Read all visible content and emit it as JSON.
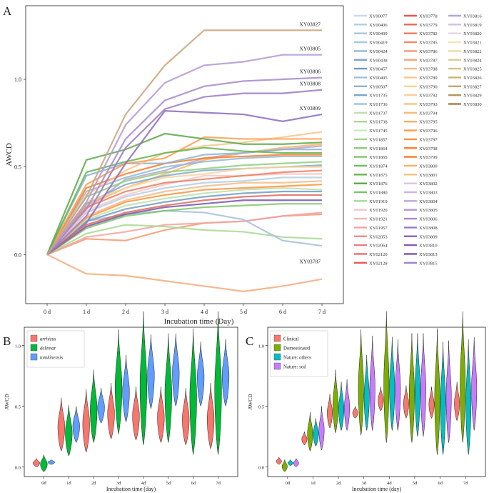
{
  "chart_data": [
    {
      "panel": "A",
      "type": "line",
      "xlabel": "Incubation time (Day)",
      "ylabel": "AWCD",
      "categories": [
        "0 d",
        "1 d",
        "2 d",
        "3 d",
        "4 d",
        "5 d",
        "6 d",
        "7 d"
      ],
      "ylim": [
        -0.28,
        1.42
      ],
      "yticks": [
        "0.0",
        "0.5",
        "1.0"
      ],
      "ytick_values": [
        0.0,
        0.5,
        1.0
      ],
      "annotations": [
        "XY03827",
        "XY03805",
        "XY03806",
        "XY03808",
        "XY03809",
        "XY03787"
      ],
      "legend_names": [
        "XY00077",
        "XY00406",
        "XY00409",
        "XY00419",
        "XY00424",
        "XY00438",
        "XY00457",
        "XY00495",
        "XY00507",
        "XY01735",
        "XY01736",
        "XY01737",
        "XY01738",
        "XY01745",
        "XY01857",
        "XY01864",
        "XY01865",
        "XY01874",
        "XY01875",
        "XY01876",
        "XY01880",
        "XY01919",
        "XY01920",
        "XY01921",
        "XY01957",
        "XY02053",
        "XY02064",
        "XY02120",
        "XY02128",
        "XY03778",
        "XY03779",
        "XY03782",
        "XY03785",
        "XY03786",
        "XY03787",
        "XY03788",
        "XY03789",
        "XY03790",
        "XY03792",
        "XY03793",
        "XY03794",
        "XY03795",
        "XY03796",
        "XY03797",
        "XY03798",
        "XY03799",
        "XY03800",
        "XY03801",
        "XY03802",
        "XY03803",
        "XY03804",
        "XY03805",
        "XY03806",
        "XY03808",
        "XY03809",
        "XY03810",
        "XY03813",
        "XY03815",
        "XY03816",
        "XY03819",
        "XY03820",
        "XY03821",
        "XY03822",
        "XY03824",
        "XY03825",
        "XY03826",
        "XY03827",
        "XY03829",
        "XY03830"
      ],
      "legend_colors": [
        "#c6dbef",
        "#b3cde3",
        "#a6c4df",
        "#9ecae1",
        "#8fb9d8",
        "#7fa8cc",
        "#6e9bc4",
        "#a3bfd9",
        "#8bb3d6",
        "#7aa6cf",
        "#9ec7e6",
        "#b8e0a8",
        "#a8d98f",
        "#c7e9c0",
        "#9fd68a",
        "#8fce7a",
        "#7fc66a",
        "#6fbe5a",
        "#63b34e",
        "#5aa845",
        "#7cc26c",
        "#a1d99b",
        "#f7c6c6",
        "#f4b4b4",
        "#f2a2a2",
        "#ef9090",
        "#ec7e7e",
        "#e96c6c",
        "#e65a5a",
        "#e35a4f",
        "#e16b55",
        "#ee7a5e",
        "#f08a68",
        "#f29a72",
        "#f4aa7c",
        "#f6ba86",
        "#f8c890",
        "#f9d49a",
        "#facfa0",
        "#fbc38a",
        "#fdb674",
        "#fdaa60",
        "#fe9e4c",
        "#fe923e",
        "#fe8630",
        "#fd7a24",
        "#f6b26b",
        "#f4c37e",
        "#d9c3e6",
        "#cdb5df",
        "#c0a6d8",
        "#b497d1",
        "#a788ca",
        "#9b79c3",
        "#8e6abc",
        "#825bb5",
        "#7a52ae",
        "#9c86c2",
        "#b3a7cf",
        "#cfc2df",
        "#e0d8ea",
        "#f2e6b3",
        "#e8dca0",
        "#dfcf8f",
        "#d6c27e",
        "#cdb56d",
        "#c9a37a",
        "#b8935f",
        "#a8844e"
      ],
      "series": [
        {
          "name": "XY03827",
          "values": [
            0,
            0.33,
            0.8,
            1.08,
            1.28,
            1.28,
            1.28,
            1.28
          ]
        },
        {
          "name": "XY03805",
          "values": [
            0,
            0.3,
            0.74,
            0.98,
            1.08,
            1.1,
            1.14,
            1.14
          ]
        },
        {
          "name": "XY03806",
          "values": [
            0,
            0.26,
            0.66,
            0.88,
            0.96,
            0.99,
            1.0,
            1.01
          ]
        },
        {
          "name": "XY03808",
          "values": [
            0,
            0.22,
            0.61,
            0.83,
            0.9,
            0.92,
            0.92,
            0.94
          ]
        },
        {
          "name": "XY03809",
          "values": [
            0,
            0.18,
            0.52,
            0.82,
            0.81,
            0.8,
            0.76,
            0.8
          ]
        },
        {
          "name": "XY03787",
          "values": [
            0,
            -0.11,
            -0.12,
            -0.15,
            -0.18,
            -0.21,
            -0.18,
            -0.14
          ]
        },
        {
          "name": "XY01876",
          "values": [
            0,
            0.54,
            0.6,
            0.69,
            0.66,
            0.63,
            0.63,
            0.64
          ]
        },
        {
          "name": "XY01875",
          "values": [
            0,
            0.47,
            0.53,
            0.58,
            0.61,
            0.59,
            0.58,
            0.58
          ]
        },
        {
          "name": "XY03796",
          "values": [
            0,
            0.4,
            0.52,
            0.55,
            0.67,
            0.66,
            0.66,
            0.66
          ]
        },
        {
          "name": "XY03793",
          "values": [
            0,
            0.34,
            0.48,
            0.58,
            0.62,
            0.64,
            0.67,
            0.7
          ]
        },
        {
          "name": "XY00507",
          "values": [
            0,
            0.45,
            0.52,
            0.52,
            0.57,
            0.58,
            0.6,
            0.6
          ]
        },
        {
          "name": "XY03799",
          "values": [
            0,
            0.38,
            0.46,
            0.52,
            0.55,
            0.56,
            0.57,
            0.57
          ]
        },
        {
          "name": "XY00424",
          "values": [
            0,
            0.36,
            0.44,
            0.5,
            0.53,
            0.55,
            0.56,
            0.56
          ]
        },
        {
          "name": "XY01864",
          "values": [
            0,
            0.33,
            0.42,
            0.47,
            0.49,
            0.51,
            0.52,
            0.53
          ]
        },
        {
          "name": "XY03790",
          "values": [
            0,
            0.3,
            0.38,
            0.44,
            0.46,
            0.49,
            0.5,
            0.5
          ]
        },
        {
          "name": "XY00438",
          "values": [
            0,
            0.29,
            0.4,
            0.45,
            0.48,
            0.49,
            0.5,
            0.51
          ]
        },
        {
          "name": "XY03782",
          "values": [
            0,
            0.27,
            0.36,
            0.41,
            0.43,
            0.45,
            0.47,
            0.48
          ]
        },
        {
          "name": "XY01920",
          "values": [
            0,
            0.25,
            0.34,
            0.4,
            0.45,
            0.45,
            0.46,
            0.46
          ]
        },
        {
          "name": "XY00406",
          "values": [
            0,
            0.24,
            0.33,
            0.38,
            0.41,
            0.42,
            0.44,
            0.44
          ]
        },
        {
          "name": "XY03788",
          "values": [
            0,
            0.22,
            0.31,
            0.36,
            0.39,
            0.41,
            0.41,
            0.42
          ]
        },
        {
          "name": "XY03797",
          "values": [
            0,
            0.21,
            0.3,
            0.34,
            0.37,
            0.38,
            0.39,
            0.4
          ]
        },
        {
          "name": "XY01737",
          "values": [
            0,
            0.2,
            0.28,
            0.32,
            0.35,
            0.37,
            0.38,
            0.37
          ]
        },
        {
          "name": "XY00457",
          "values": [
            0,
            0.19,
            0.26,
            0.3,
            0.33,
            0.35,
            0.36,
            0.36
          ]
        },
        {
          "name": "XY03779",
          "values": [
            0,
            0.17,
            0.24,
            0.28,
            0.31,
            0.33,
            0.34,
            0.34
          ]
        },
        {
          "name": "XY03813",
          "values": [
            0,
            0.16,
            0.23,
            0.27,
            0.29,
            0.31,
            0.31,
            0.31
          ]
        },
        {
          "name": "XY01865",
          "values": [
            0,
            0.15,
            0.22,
            0.25,
            0.27,
            0.28,
            0.29,
            0.29
          ]
        },
        {
          "name": "XY00495",
          "values": [
            0,
            0.19,
            0.23,
            0.25,
            0.24,
            0.2,
            0.08,
            0.05
          ]
        },
        {
          "name": "XY01738",
          "values": [
            0,
            0.12,
            0.17,
            0.16,
            0.14,
            0.13,
            0.1,
            0.09
          ]
        },
        {
          "name": "XY01957",
          "values": [
            0,
            0.1,
            0.13,
            0.17,
            0.18,
            0.19,
            0.22,
            0.24
          ]
        },
        {
          "name": "XY03786",
          "values": [
            0,
            0.09,
            0.08,
            0.14,
            0.18,
            0.19,
            0.22,
            0.23
          ]
        },
        {
          "name": "XY03800",
          "values": [
            0,
            0.28,
            0.38,
            0.46,
            0.54,
            0.58,
            0.61,
            0.63
          ]
        },
        {
          "name": "XY03816",
          "values": [
            0,
            0.26,
            0.43,
            0.48,
            0.55,
            0.58,
            0.6,
            0.62
          ]
        }
      ]
    },
    {
      "panel": "B",
      "type": "violin",
      "xlabel": "Incubation time (day)",
      "ylabel": "AWCD",
      "categories": [
        "0d",
        "1d",
        "2d",
        "3d",
        "4d",
        "5d",
        "6d",
        "7d"
      ],
      "yticks": [
        "0.0",
        "0.5",
        "1.0"
      ],
      "ytick_values": [
        0.0,
        0.5,
        1.0
      ],
      "ylim": [
        -0.08,
        1.15
      ],
      "legend": [
        {
          "label": "arrhizus",
          "color": "#f8766d"
        },
        {
          "label": "delemar",
          "color": "#00ba38"
        },
        {
          "label": "tomkinensis",
          "color": "#619cff"
        }
      ],
      "groups": [
        {
          "day": "0d",
          "ranges": [
            [
              0.0,
              0.07
            ],
            [
              -0.04,
              0.1
            ],
            [
              0.02,
              0.06
            ]
          ]
        },
        {
          "day": "1d",
          "ranges": [
            [
              0.13,
              0.57
            ],
            [
              0.09,
              0.51
            ],
            [
              0.2,
              0.5
            ]
          ]
        },
        {
          "day": "2d",
          "ranges": [
            [
              0.12,
              0.64
            ],
            [
              0.2,
              0.8
            ],
            [
              0.36,
              0.65
            ]
          ]
        },
        {
          "day": "3d",
          "ranges": [
            [
              0.23,
              0.69
            ],
            [
              0.27,
              1.13
            ],
            [
              0.37,
              0.92
            ]
          ]
        },
        {
          "day": "4d",
          "ranges": [
            [
              0.22,
              0.66
            ],
            [
              0.18,
              1.28
            ],
            [
              0.48,
              1.09
            ]
          ]
        },
        {
          "day": "5d",
          "ranges": [
            [
              0.2,
              0.66
            ],
            [
              0.2,
              1.1
            ],
            [
              0.5,
              1.1
            ]
          ]
        },
        {
          "day": "6d",
          "ranges": [
            [
              0.18,
              0.65
            ],
            [
              0.1,
              1.14
            ],
            [
              0.5,
              1.03
            ]
          ]
        },
        {
          "day": "7d",
          "ranges": [
            [
              0.15,
              0.69
            ],
            [
              0.1,
              1.28
            ],
            [
              0.5,
              1.05
            ]
          ]
        }
      ]
    },
    {
      "panel": "C",
      "type": "violin",
      "xlabel": "Incubation time (day)",
      "ylabel": "AWCD",
      "categories": [
        "0d",
        "1d",
        "2d",
        "3d",
        "4d",
        "5d",
        "6d",
        "7d"
      ],
      "yticks": [
        "0.0",
        "0.5",
        "1.0"
      ],
      "ytick_values": [
        0.0,
        0.5,
        1.0
      ],
      "ylim": [
        -0.08,
        1.15
      ],
      "legend": [
        {
          "label": "Clinical",
          "color": "#f8766d"
        },
        {
          "label": "Domesticated",
          "color": "#7cae00"
        },
        {
          "label": "Nature: others",
          "color": "#00bfc4"
        },
        {
          "label": "Nature: soil",
          "color": "#c77cff"
        }
      ],
      "groups": [
        {
          "day": "0d",
          "ranges": [
            [
              0.02,
              0.08
            ],
            [
              -0.04,
              0.06
            ],
            [
              0.01,
              0.06
            ],
            [
              0.0,
              0.07
            ]
          ]
        },
        {
          "day": "1d",
          "ranges": [
            [
              0.18,
              0.29
            ],
            [
              0.13,
              0.45
            ],
            [
              0.17,
              0.4
            ],
            [
              0.14,
              0.5
            ]
          ]
        },
        {
          "day": "2d",
          "ranges": [
            [
              0.32,
              0.6
            ],
            [
              0.28,
              0.8
            ],
            [
              0.3,
              0.7
            ],
            [
              0.3,
              0.72
            ]
          ]
        },
        {
          "day": "3d",
          "ranges": [
            [
              0.4,
              0.5
            ],
            [
              0.26,
              1.13
            ],
            [
              0.3,
              0.92
            ],
            [
              0.3,
              1.08
            ]
          ]
        },
        {
          "day": "4d",
          "ranges": [
            [
              0.46,
              0.66
            ],
            [
              0.2,
              1.28
            ],
            [
              0.3,
              1.07
            ],
            [
              0.3,
              1.05
            ]
          ]
        },
        {
          "day": "5d",
          "ranges": [
            [
              0.4,
              0.67
            ],
            [
              0.2,
              1.1
            ],
            [
              0.25,
              1.1
            ],
            [
              0.25,
              1.1
            ]
          ]
        },
        {
          "day": "6d",
          "ranges": [
            [
              0.4,
              0.66
            ],
            [
              0.1,
              1.14
            ],
            [
              0.1,
              1.03
            ],
            [
              0.2,
              1.04
            ]
          ]
        },
        {
          "day": "7d",
          "ranges": [
            [
              0.38,
              0.7
            ],
            [
              0.2,
              1.28
            ],
            [
              0.1,
              1.05
            ],
            [
              0.3,
              1.07
            ]
          ]
        }
      ]
    }
  ],
  "panel_labels": {
    "a": "A",
    "b": "B",
    "c": "C"
  }
}
